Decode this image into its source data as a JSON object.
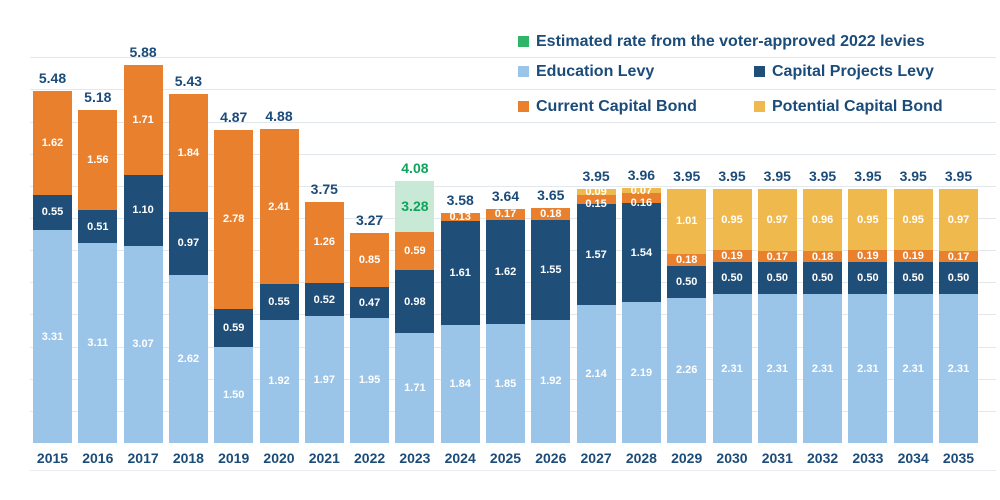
{
  "legend": {
    "estimated": {
      "label": "Estimated rate from the voter-approved 2022 levies",
      "color": "#2fb567"
    },
    "education": {
      "label": "Education Levy",
      "color": "#9ac4e8"
    },
    "capital": {
      "label": "Capital Projects Levy",
      "color": "#1f4e79"
    },
    "current": {
      "label": "Current Capital Bond",
      "color": "#e8802e"
    },
    "potential": {
      "label": "Potential Capital Bond",
      "color": "#f0b94d"
    }
  },
  "chart_data": {
    "type": "bar",
    "stacked": true,
    "title": "",
    "xlabel": "",
    "ylabel": "",
    "categories": [
      "2015",
      "2016",
      "2017",
      "2018",
      "2019",
      "2020",
      "2021",
      "2022",
      "2023",
      "2024",
      "2025",
      "2026",
      "2027",
      "2028",
      "2029",
      "2030",
      "2031",
      "2032",
      "2033",
      "2034",
      "2035"
    ],
    "series": [
      {
        "key": "education",
        "name": "Education Levy",
        "color": "#9ac4e8",
        "values": [
          3.31,
          3.11,
          3.07,
          2.62,
          1.5,
          1.92,
          1.97,
          1.95,
          1.71,
          1.84,
          1.85,
          1.92,
          2.14,
          2.19,
          2.26,
          2.31,
          2.31,
          2.31,
          2.31,
          2.31,
          2.31
        ]
      },
      {
        "key": "capital-projects",
        "name": "Capital Projects Levy",
        "color": "#1f4e79",
        "values": [
          0.55,
          0.51,
          1.1,
          0.97,
          0.59,
          0.55,
          0.52,
          0.47,
          0.98,
          1.61,
          1.62,
          1.55,
          1.57,
          1.54,
          0.5,
          0.5,
          0.5,
          0.5,
          0.5,
          0.5,
          0.5
        ]
      },
      {
        "key": "current-capital-bond",
        "name": "Current Capital Bond",
        "color": "#e8802e",
        "values": [
          1.62,
          1.56,
          1.71,
          1.84,
          2.78,
          2.41,
          1.26,
          0.85,
          0.59,
          0.13,
          0.17,
          0.18,
          0.15,
          0.16,
          0.18,
          0.19,
          0.17,
          0.18,
          0.19,
          0.19,
          0.17
        ]
      },
      {
        "key": "potential-capital-bond",
        "name": "Potential Capital Bond",
        "color": "#f0b94d",
        "values": [
          0,
          0,
          0,
          0,
          0,
          0,
          0,
          0,
          0,
          0,
          0,
          0,
          0.09,
          0.07,
          1.01,
          0.95,
          0.97,
          0.96,
          0.95,
          0.95,
          0.97
        ]
      },
      {
        "key": "estimated-2022-levies",
        "name": "Estimated rate from the voter-approved 2022 levies",
        "color": "#c7e9d6",
        "values": [
          0,
          0,
          0,
          0,
          0,
          0,
          0,
          0,
          0.8,
          0,
          0,
          0,
          0,
          0,
          0,
          0,
          0,
          0,
          0,
          0,
          0
        ],
        "label_overrides": {
          "8": "3.28"
        },
        "label_color": "#0fa35c"
      }
    ],
    "totals": [
      "5.48",
      "5.18",
      "5.88",
      "5.43",
      "4.87",
      "4.88",
      "3.75",
      "3.27",
      "4.08",
      "3.58",
      "3.64",
      "3.65",
      "3.95",
      "3.96",
      "3.95",
      "3.95",
      "3.95",
      "3.95",
      "3.95",
      "3.95",
      "3.95"
    ],
    "total_label_color": "#1b4b79",
    "total_color_overrides": {
      "8": "#0fa35c"
    },
    "axis_label_color": "#1b4b79",
    "ylim": [
      0,
      6.2
    ],
    "gridline_step": 0.5,
    "grid": true,
    "legend_position": "top-right"
  }
}
